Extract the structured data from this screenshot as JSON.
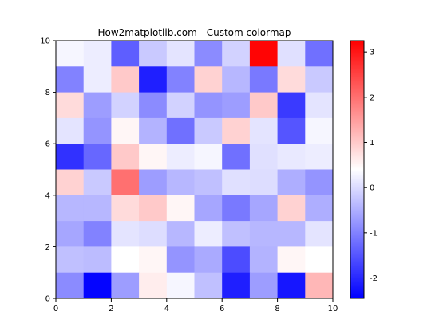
{
  "chart_data": {
    "type": "heatmap",
    "title": "How2matplotlib.com - Custom colormap",
    "xlabel": "",
    "ylabel": "",
    "xlim": [
      0,
      10
    ],
    "ylim": [
      0,
      10
    ],
    "x_ticks": [
      "0",
      "2",
      "4",
      "6",
      "8",
      "10"
    ],
    "y_ticks": [
      "0",
      "2",
      "4",
      "6",
      "8",
      "10"
    ],
    "grid": false,
    "colormap": {
      "name": "custom blue-white-red",
      "stops": [
        "#0000ff",
        "#ffffff",
        "#ff0000"
      ],
      "vmin": -2.45,
      "vmax": 3.25
    },
    "colorbar": {
      "ticks": [
        "-2",
        "-1",
        "0",
        "1",
        "2",
        "3"
      ],
      "tick_values": [
        -2,
        -1,
        0,
        1,
        2,
        3
      ]
    },
    "rows_top_to_bottom": [
      [
        0.3,
        0.2,
        -1.4,
        -0.2,
        0.1,
        -0.9,
        -0.1,
        3.2,
        0.05,
        -1.2
      ],
      [
        -1.0,
        0.2,
        1.0,
        -2.1,
        -1.0,
        0.9,
        -0.4,
        -1.1,
        0.8,
        -0.2
      ],
      [
        0.8,
        -0.7,
        -0.1,
        -0.9,
        -0.1,
        -0.8,
        -0.7,
        1.0,
        -1.8,
        0.1
      ],
      [
        0.1,
        -0.8,
        0.5,
        -0.45,
        -1.2,
        -0.2,
        0.9,
        0.1,
        -1.5,
        0.3
      ],
      [
        -1.9,
        -1.3,
        1.0,
        0.5,
        0.2,
        0.3,
        -1.2,
        0.05,
        0.15,
        0.2
      ],
      [
        0.9,
        -0.2,
        2.0,
        -0.7,
        -0.4,
        -0.3,
        0.05,
        0.02,
        -0.5,
        -0.8
      ],
      [
        -0.4,
        -0.4,
        0.8,
        1.0,
        0.5,
        -0.6,
        -1.1,
        -0.6,
        0.9,
        -0.5
      ],
      [
        -0.6,
        -1.0,
        0.1,
        0.02,
        -0.4,
        0.2,
        -0.3,
        -0.4,
        -0.4,
        0.1
      ],
      [
        -0.3,
        -0.35,
        0.4,
        0.5,
        -0.8,
        -0.55,
        -1.6,
        -0.45,
        0.5,
        0.4
      ],
      [
        -0.9,
        -2.4,
        -0.7,
        0.6,
        0.3,
        -0.3,
        -2.1,
        -0.7,
        -2.2,
        1.2
      ]
    ]
  }
}
